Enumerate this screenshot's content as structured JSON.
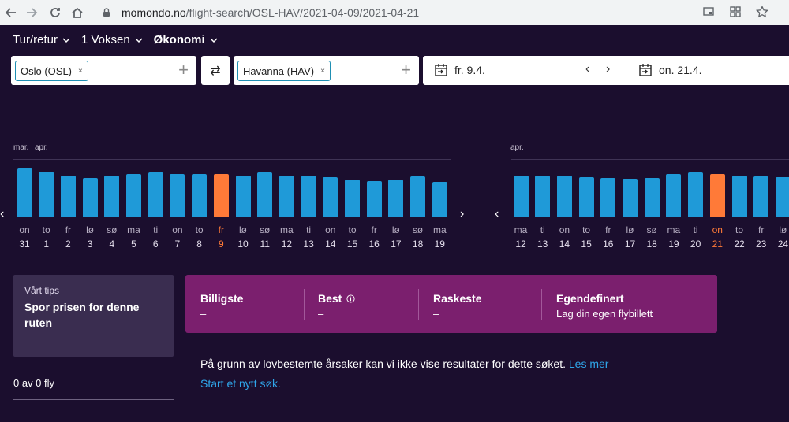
{
  "browser": {
    "url_host": "momondo.no",
    "url_path": "/flight-search/OSL-HAV/2021-04-09/2021-04-21"
  },
  "options": {
    "trip_type": "Tur/retur",
    "passengers": "1 Voksen",
    "cabin": "Økonomi"
  },
  "search": {
    "origin": "Oslo (OSL)",
    "destination": "Havanna (HAV)",
    "depart_date": "fr. 9.4.",
    "return_date": "on. 21.4."
  },
  "depart_chart": {
    "months": [
      "mar.",
      "apr."
    ],
    "days": [
      {
        "dow": "on",
        "num": "31",
        "level": 0.86,
        "selected": false
      },
      {
        "dow": "to",
        "num": "1",
        "level": 0.81,
        "selected": false
      },
      {
        "dow": "fr",
        "num": "2",
        "level": 0.74,
        "selected": false
      },
      {
        "dow": "lø",
        "num": "3",
        "level": 0.7,
        "selected": false
      },
      {
        "dow": "sø",
        "num": "4",
        "level": 0.73,
        "selected": false
      },
      {
        "dow": "ma",
        "num": "5",
        "level": 0.77,
        "selected": false
      },
      {
        "dow": "ti",
        "num": "6",
        "level": 0.79,
        "selected": false
      },
      {
        "dow": "on",
        "num": "7",
        "level": 0.77,
        "selected": false
      },
      {
        "dow": "to",
        "num": "8",
        "level": 0.76,
        "selected": false
      },
      {
        "dow": "fr",
        "num": "9",
        "level": 0.76,
        "selected": true
      },
      {
        "dow": "lø",
        "num": "10",
        "level": 0.73,
        "selected": false
      },
      {
        "dow": "sø",
        "num": "11",
        "level": 0.79,
        "selected": false
      },
      {
        "dow": "ma",
        "num": "12",
        "level": 0.74,
        "selected": false
      },
      {
        "dow": "ti",
        "num": "13",
        "level": 0.73,
        "selected": false
      },
      {
        "dow": "on",
        "num": "14",
        "level": 0.71,
        "selected": false
      },
      {
        "dow": "to",
        "num": "15",
        "level": 0.67,
        "selected": false
      },
      {
        "dow": "fr",
        "num": "16",
        "level": 0.64,
        "selected": false
      },
      {
        "dow": "lø",
        "num": "17",
        "level": 0.67,
        "selected": false
      },
      {
        "dow": "sø",
        "num": "18",
        "level": 0.72,
        "selected": false
      },
      {
        "dow": "ma",
        "num": "19",
        "level": 0.63,
        "selected": false
      }
    ]
  },
  "return_chart": {
    "months": [
      "apr."
    ],
    "days": [
      {
        "dow": "ma",
        "num": "12",
        "level": 0.73,
        "selected": false
      },
      {
        "dow": "ti",
        "num": "13",
        "level": 0.73,
        "selected": false
      },
      {
        "dow": "on",
        "num": "14",
        "level": 0.73,
        "selected": false
      },
      {
        "dow": "to",
        "num": "15",
        "level": 0.71,
        "selected": false
      },
      {
        "dow": "fr",
        "num": "16",
        "level": 0.69,
        "selected": false
      },
      {
        "dow": "lø",
        "num": "17",
        "level": 0.68,
        "selected": false
      },
      {
        "dow": "sø",
        "num": "18",
        "level": 0.7,
        "selected": false
      },
      {
        "dow": "ma",
        "num": "19",
        "level": 0.76,
        "selected": false
      },
      {
        "dow": "ti",
        "num": "20",
        "level": 0.79,
        "selected": false
      },
      {
        "dow": "on",
        "num": "21",
        "level": 0.77,
        "selected": true
      },
      {
        "dow": "to",
        "num": "22",
        "level": 0.74,
        "selected": false
      },
      {
        "dow": "fr",
        "num": "23",
        "level": 0.72,
        "selected": false
      },
      {
        "dow": "lø",
        "num": "24",
        "level": 0.71,
        "selected": false
      }
    ]
  },
  "tips": {
    "heading": "Vårt tips",
    "text": "Spor prisen for denne ruten"
  },
  "results_count": "0 av 0 fly",
  "sort": {
    "cheapest": {
      "label": "Billigste",
      "value": "–"
    },
    "best": {
      "label": "Best",
      "value": "–"
    },
    "fastest": {
      "label": "Raskeste",
      "value": "–"
    },
    "custom": {
      "label": "Egendefinert",
      "value": "Lag din egen flybillett"
    }
  },
  "message": {
    "text": "På grunn av lovbestemte årsaker kan vi ikke vise resultater for dette søket.",
    "link": "Les mer",
    "new_search": "Start et nytt søk."
  },
  "colors": {
    "background": "#1b0e2e",
    "bar": "#1f9ad8",
    "selected": "#ff7a38",
    "sort_panel": "#7b1f6e",
    "link": "#2fa6ea"
  },
  "icons": [
    "back-icon",
    "forward-icon",
    "reload-icon",
    "home-icon",
    "lock-icon",
    "cast-icon",
    "extension-icon",
    "star-icon",
    "swap-icon",
    "calendar-icon",
    "info-icon"
  ]
}
